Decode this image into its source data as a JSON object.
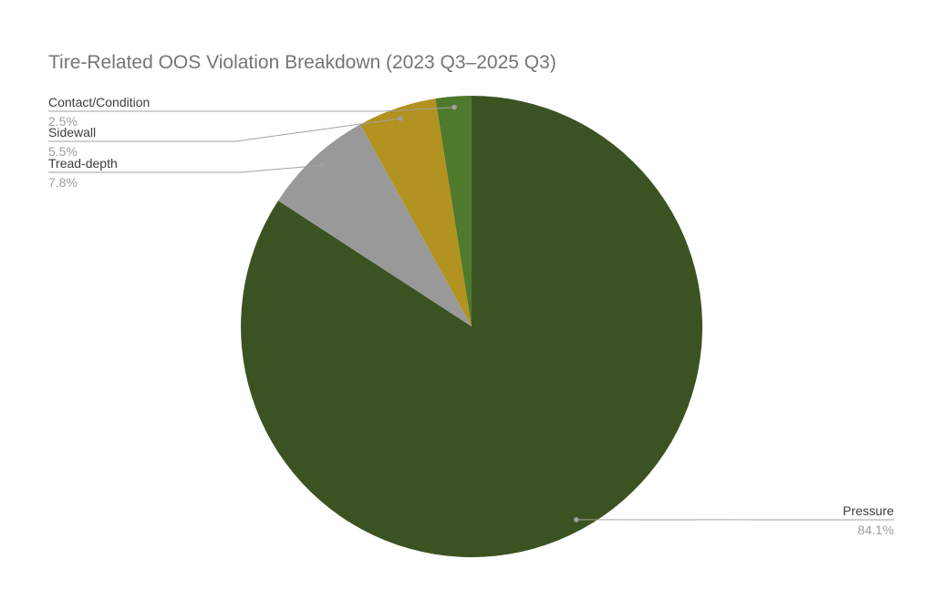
{
  "page": {
    "background": "#ffffff"
  },
  "chart_data": {
    "type": "pie",
    "title": "Tire-Related OOS Violation Breakdown (2023 Q3–2025 Q3)",
    "title_color": "#757575",
    "legend": "none",
    "labels_position": "outside-with-leader-lines",
    "direction": "clockwise",
    "start_angle_deg": 0,
    "slices": [
      {
        "label": "Pressure",
        "value": 84.1,
        "display": "84.1%",
        "color": "#3b5322"
      },
      {
        "label": "Tread-depth",
        "value": 7.8,
        "display": "7.8%",
        "color": "#999999"
      },
      {
        "label": "Sidewall",
        "value": 5.5,
        "display": "5.5%",
        "color": "#b29220"
      },
      {
        "label": "Contact/Condition",
        "value": 2.5,
        "display": "2.5%",
        "color": "#4f7a2c"
      }
    ],
    "label_style": {
      "name_color": "#3c3c3c",
      "pct_color": "#9e9e9e",
      "line_color": "#a0a0a0"
    }
  }
}
